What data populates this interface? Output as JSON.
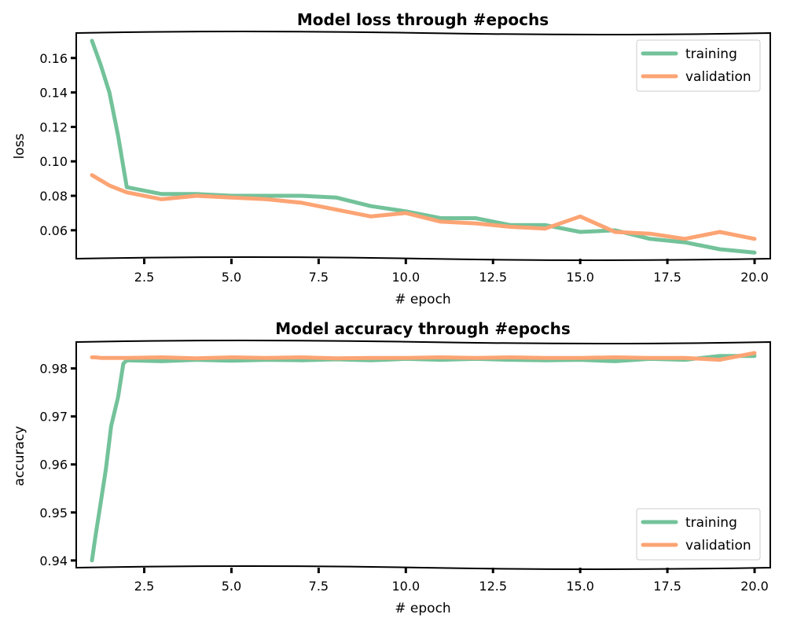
{
  "colors": {
    "training": "#73c29a",
    "validation": "#fca474"
  },
  "chart_data": [
    {
      "type": "line",
      "title": "Model loss through #epochs",
      "xlabel": "# epoch",
      "ylabel": "loss",
      "xlim": [
        0.55,
        20.45
      ],
      "ylim": [
        0.0435,
        0.1745
      ],
      "xticks": [
        2.5,
        5.0,
        7.5,
        10.0,
        12.5,
        15.0,
        17.5,
        20.0
      ],
      "xtick_labels": [
        "2.5",
        "5.0",
        "7.5",
        "10.0",
        "12.5",
        "15.0",
        "17.5",
        "20.0"
      ],
      "yticks": [
        0.06,
        0.08,
        0.1,
        0.12,
        0.14,
        0.16
      ],
      "ytick_labels": [
        "0.06",
        "0.08",
        "0.10",
        "0.12",
        "0.14",
        "0.16"
      ],
      "grid": false,
      "legend_position": "top-right",
      "x": [
        1,
        1.25,
        1.5,
        1.75,
        2,
        3,
        4,
        5,
        6,
        7,
        8,
        9,
        10,
        11,
        12,
        13,
        14,
        15,
        16,
        17,
        18,
        19,
        20
      ],
      "series": [
        {
          "name": "training",
          "values": [
            0.17,
            0.156,
            0.14,
            0.115,
            0.085,
            0.081,
            0.081,
            0.08,
            0.08,
            0.08,
            0.079,
            0.074,
            0.071,
            0.067,
            0.067,
            0.063,
            0.063,
            0.059,
            0.06,
            0.055,
            0.053,
            0.049,
            0.047
          ]
        },
        {
          "name": "validation",
          "values": [
            0.092,
            0.089,
            0.086,
            0.084,
            0.082,
            0.078,
            0.08,
            0.079,
            0.078,
            0.076,
            0.072,
            0.068,
            0.07,
            0.065,
            0.064,
            0.062,
            0.061,
            0.068,
            0.059,
            0.058,
            0.055,
            0.059,
            0.055
          ]
        }
      ]
    },
    {
      "type": "line",
      "title": "Model accuracy through #epochs",
      "xlabel": "# epoch",
      "ylabel": "accuracy",
      "xlim": [
        0.55,
        20.45
      ],
      "ylim": [
        0.9385,
        0.9855
      ],
      "xticks": [
        2.5,
        5.0,
        7.5,
        10.0,
        12.5,
        15.0,
        17.5,
        20.0
      ],
      "xtick_labels": [
        "2.5",
        "5.0",
        "7.5",
        "10.0",
        "12.5",
        "15.0",
        "17.5",
        "20.0"
      ],
      "yticks": [
        0.94,
        0.95,
        0.96,
        0.97,
        0.98
      ],
      "ytick_labels": [
        "0.94",
        "0.95",
        "0.96",
        "0.97",
        "0.98"
      ],
      "grid": false,
      "legend_position": "bottom-right",
      "x": [
        1,
        1.1,
        1.25,
        1.4,
        1.55,
        1.75,
        1.9,
        2,
        3,
        4,
        5,
        6,
        7,
        8,
        9,
        10,
        11,
        12,
        13,
        14,
        15,
        16,
        17,
        18,
        19,
        20
      ],
      "series": [
        {
          "name": "training",
          "values": [
            0.94,
            0.945,
            0.952,
            0.959,
            0.968,
            0.974,
            0.981,
            0.9817,
            0.9815,
            0.9818,
            0.9816,
            0.9818,
            0.9817,
            0.9819,
            0.9817,
            0.982,
            0.9818,
            0.982,
            0.9818,
            0.9817,
            0.9818,
            0.9815,
            0.982,
            0.9818,
            0.9826,
            0.9826
          ]
        },
        {
          "name": "validation",
          "values": [
            0.9823,
            0.9823,
            0.9822,
            0.9822,
            0.9822,
            0.9822,
            0.9822,
            0.9822,
            0.9823,
            0.9821,
            0.9823,
            0.9822,
            0.9823,
            0.9821,
            0.9822,
            0.9822,
            0.9823,
            0.9822,
            0.9823,
            0.9822,
            0.9822,
            0.9823,
            0.9822,
            0.9822,
            0.9818,
            0.9832
          ]
        }
      ]
    }
  ]
}
